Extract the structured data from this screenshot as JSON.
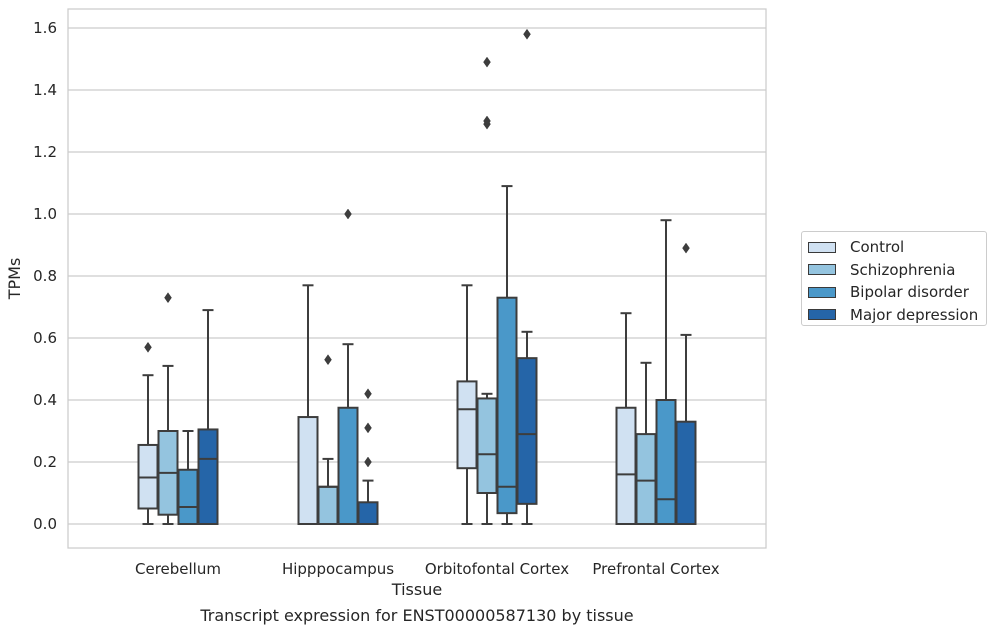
{
  "caption": "Transcript expression for ENST00000587130 by tissue",
  "chart_data": {
    "type": "box",
    "xlabel": "Tissue",
    "ylabel": "TPMs",
    "ylim": [
      -0.08,
      1.66
    ],
    "yticks": [
      "0.0",
      "0.2",
      "0.4",
      "0.6",
      "0.8",
      "1.0",
      "1.2",
      "1.4",
      "1.6"
    ],
    "grid": "horizontal",
    "legend_position": "right",
    "categories": [
      "Cerebellum",
      "Hipppocampus",
      "Orbitofontal Cortex",
      "Prefrontal Cortex"
    ],
    "series": [
      {
        "name": "Control",
        "color": "#d0e1f2",
        "boxes": [
          {
            "whislo": 0.0,
            "q1": 0.05,
            "med": 0.15,
            "q3": 0.255,
            "whishi": 0.48,
            "fliers": [
              0.57
            ]
          },
          {
            "whislo": 0.0,
            "q1": 0.0,
            "med": 0.0,
            "q3": 0.345,
            "whishi": 0.77,
            "fliers": []
          },
          {
            "whislo": 0.0,
            "q1": 0.18,
            "med": 0.37,
            "q3": 0.46,
            "whishi": 0.77,
            "fliers": []
          },
          {
            "whislo": 0.0,
            "q1": 0.0,
            "med": 0.16,
            "q3": 0.375,
            "whishi": 0.68,
            "fliers": []
          }
        ]
      },
      {
        "name": "Schizophrenia",
        "color": "#94c4df",
        "boxes": [
          {
            "whislo": 0.0,
            "q1": 0.03,
            "med": 0.165,
            "q3": 0.3,
            "whishi": 0.51,
            "fliers": [
              0.73
            ]
          },
          {
            "whislo": 0.0,
            "q1": 0.0,
            "med": 0.12,
            "q3": 0.12,
            "whishi": 0.21,
            "fliers": [
              0.53
            ]
          },
          {
            "whislo": 0.0,
            "q1": 0.1,
            "med": 0.225,
            "q3": 0.405,
            "whishi": 0.42,
            "fliers": [
              1.29,
              1.3,
              1.49
            ]
          },
          {
            "whislo": 0.0,
            "q1": 0.0,
            "med": 0.14,
            "q3": 0.29,
            "whishi": 0.52,
            "fliers": []
          }
        ]
      },
      {
        "name": "Bipolar disorder",
        "color": "#4a98c9",
        "boxes": [
          {
            "whislo": 0.0,
            "q1": 0.0,
            "med": 0.055,
            "q3": 0.175,
            "whishi": 0.3,
            "fliers": []
          },
          {
            "whislo": 0.0,
            "q1": 0.0,
            "med": 0.0,
            "q3": 0.375,
            "whishi": 0.58,
            "fliers": [
              1.0
            ]
          },
          {
            "whislo": 0.0,
            "q1": 0.035,
            "med": 0.12,
            "q3": 0.73,
            "whishi": 1.09,
            "fliers": []
          },
          {
            "whislo": 0.0,
            "q1": 0.0,
            "med": 0.08,
            "q3": 0.4,
            "whishi": 0.98,
            "fliers": []
          }
        ]
      },
      {
        "name": "Major depression",
        "color": "#2565a8",
        "boxes": [
          {
            "whislo": 0.0,
            "q1": 0.0,
            "med": 0.21,
            "q3": 0.305,
            "whishi": 0.69,
            "fliers": []
          },
          {
            "whislo": 0.0,
            "q1": 0.0,
            "med": 0.0,
            "q3": 0.07,
            "whishi": 0.14,
            "fliers": [
              0.2,
              0.31,
              0.42
            ]
          },
          {
            "whislo": 0.0,
            "q1": 0.065,
            "med": 0.29,
            "q3": 0.535,
            "whishi": 0.62,
            "fliers": [
              1.58
            ]
          },
          {
            "whislo": 0.0,
            "q1": 0.0,
            "med": 0.0,
            "q3": 0.33,
            "whishi": 0.61,
            "fliers": [
              0.89
            ]
          }
        ]
      }
    ]
  }
}
